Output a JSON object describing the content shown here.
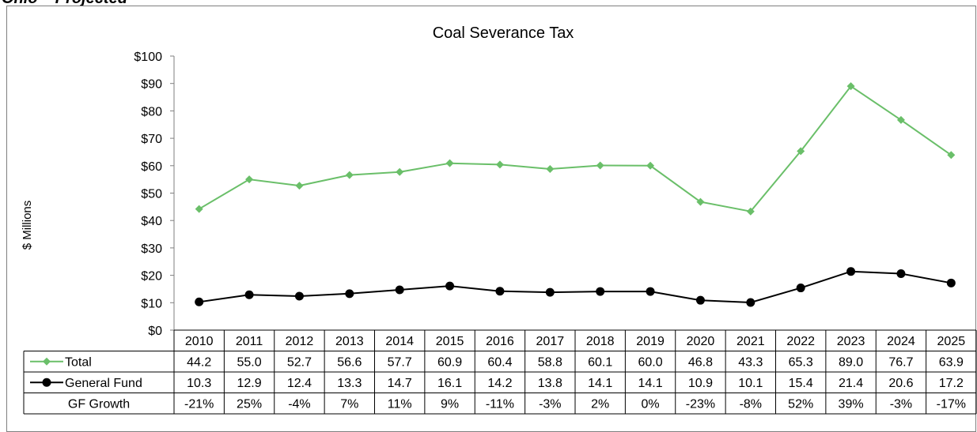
{
  "page_heading": "Ohio – Projected",
  "chart_data": {
    "type": "line",
    "title": "Coal Severance Tax",
    "ylabel": "$ Millions",
    "xlabel": "",
    "ylim": [
      0,
      100
    ],
    "y_ticks": [
      "$0",
      "$10",
      "$20",
      "$30",
      "$40",
      "$50",
      "$60",
      "$70",
      "$80",
      "$90",
      "$100"
    ],
    "categories": [
      "2010",
      "2011",
      "2012",
      "2013",
      "2014",
      "2015",
      "2016",
      "2017",
      "2018",
      "2019",
      "2020",
      "2021",
      "2022",
      "2023",
      "2024",
      "2025"
    ],
    "series": [
      {
        "name": "Total",
        "color": "#6abf69",
        "marker": "diamond",
        "values": [
          44.2,
          55.0,
          52.7,
          56.6,
          57.7,
          60.9,
          60.4,
          58.8,
          60.1,
          60.0,
          46.8,
          43.3,
          65.3,
          89.0,
          76.7,
          63.9
        ],
        "labels": [
          "44.2",
          "55.0",
          "52.7",
          "56.6",
          "57.7",
          "60.9",
          "60.4",
          "58.8",
          "60.1",
          "60.0",
          "46.8",
          "43.3",
          "65.3",
          "89.0",
          "76.7",
          "63.9"
        ]
      },
      {
        "name": "General Fund",
        "color": "#000000",
        "marker": "circle",
        "values": [
          10.3,
          12.9,
          12.4,
          13.3,
          14.7,
          16.1,
          14.2,
          13.8,
          14.1,
          14.1,
          10.9,
          10.1,
          15.4,
          21.4,
          20.6,
          17.2
        ],
        "labels": [
          "10.3",
          "12.9",
          "12.4",
          "13.3",
          "14.7",
          "16.1",
          "14.2",
          "13.8",
          "14.1",
          "14.1",
          "10.9",
          "10.1",
          "15.4",
          "21.4",
          "20.6",
          "17.2"
        ]
      }
    ],
    "table_rows": [
      {
        "label": "GF Growth",
        "values": [
          "-21%",
          "25%",
          "-4%",
          "7%",
          "11%",
          "9%",
          "-11%",
          "-3%",
          "2%",
          "0%",
          "-23%",
          "-8%",
          "52%",
          "39%",
          "-3%",
          "-17%"
        ]
      }
    ],
    "grid": false,
    "legend": "data-table"
  }
}
